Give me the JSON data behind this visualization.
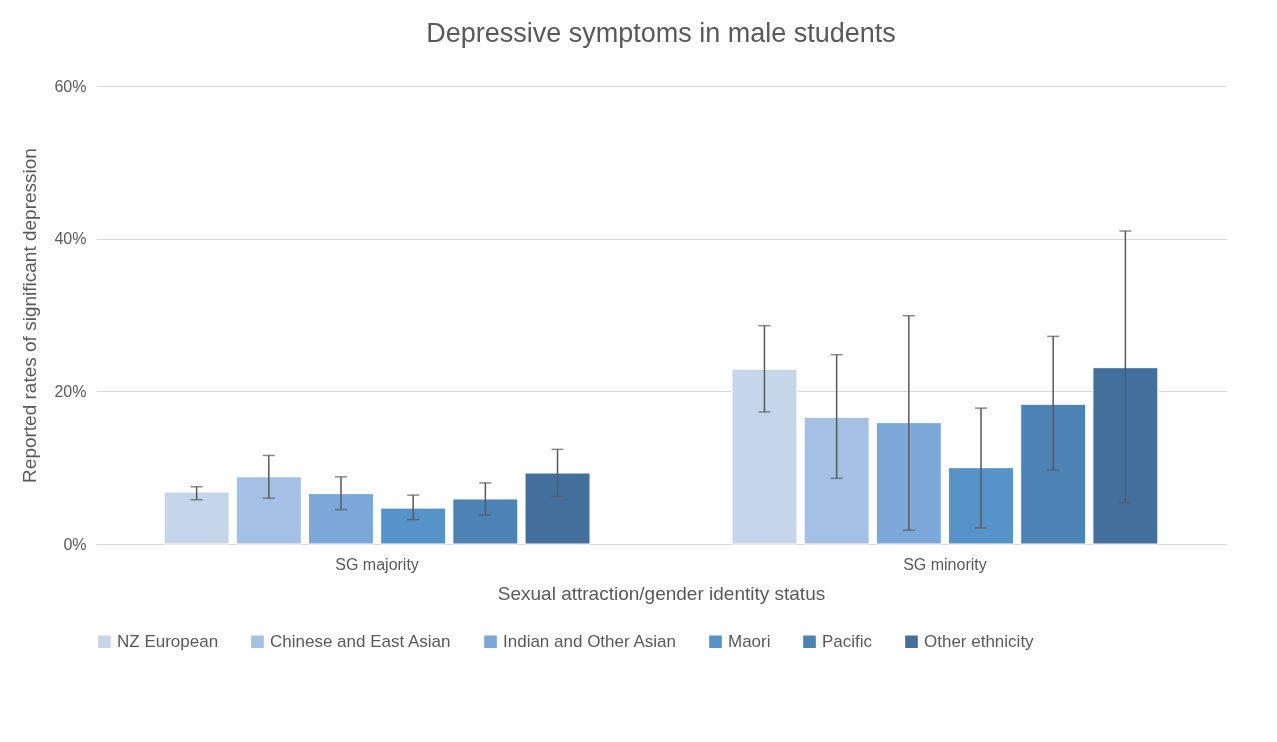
{
  "chart_data": {
    "type": "bar",
    "title": "Depressive symptoms in male students",
    "xlabel": "Sexual attraction/gender identity status",
    "ylabel": "Reported rates of significant depression",
    "categories": [
      "SG majority",
      "SG minority"
    ],
    "series": [
      {
        "name": "NZ European",
        "color": "#c5d5ea",
        "values": [
          6.8,
          22.9
        ],
        "errors": [
          [
            5.8,
            7.5
          ],
          [
            17.3,
            28.6
          ]
        ]
      },
      {
        "name": "Chinese and East Asian",
        "color": "#a4c0e4",
        "values": [
          8.8,
          16.6
        ],
        "errors": [
          [
            6.0,
            11.6
          ],
          [
            8.6,
            24.8
          ]
        ]
      },
      {
        "name": "Indian and Other Asian",
        "color": "#7ba8d8",
        "values": [
          6.6,
          15.9
        ],
        "errors": [
          [
            4.5,
            8.8
          ],
          [
            1.8,
            29.9
          ]
        ]
      },
      {
        "name": "Maori",
        "color": "#5593c9",
        "values": [
          4.7,
          10.0
        ],
        "errors": [
          [
            3.2,
            6.4
          ],
          [
            2.1,
            17.8
          ]
        ]
      },
      {
        "name": "Pacific",
        "color": "#4d82b5",
        "values": [
          5.9,
          18.3
        ],
        "errors": [
          [
            3.8,
            8.0
          ],
          [
            9.7,
            27.2
          ]
        ]
      },
      {
        "name": "Other ethnicity",
        "color": "#426f9c",
        "values": [
          9.3,
          23.1
        ],
        "errors": [
          [
            6.2,
            12.4
          ],
          [
            5.4,
            41.0
          ]
        ]
      }
    ],
    "ylim": [
      0,
      60
    ],
    "yticks": [
      {
        "value": 0,
        "label": "0%"
      },
      {
        "value": 20,
        "label": "20%"
      },
      {
        "value": 40,
        "label": "40%"
      },
      {
        "value": 60,
        "label": "60%"
      }
    ],
    "grid": "y",
    "legend": "bottom"
  }
}
